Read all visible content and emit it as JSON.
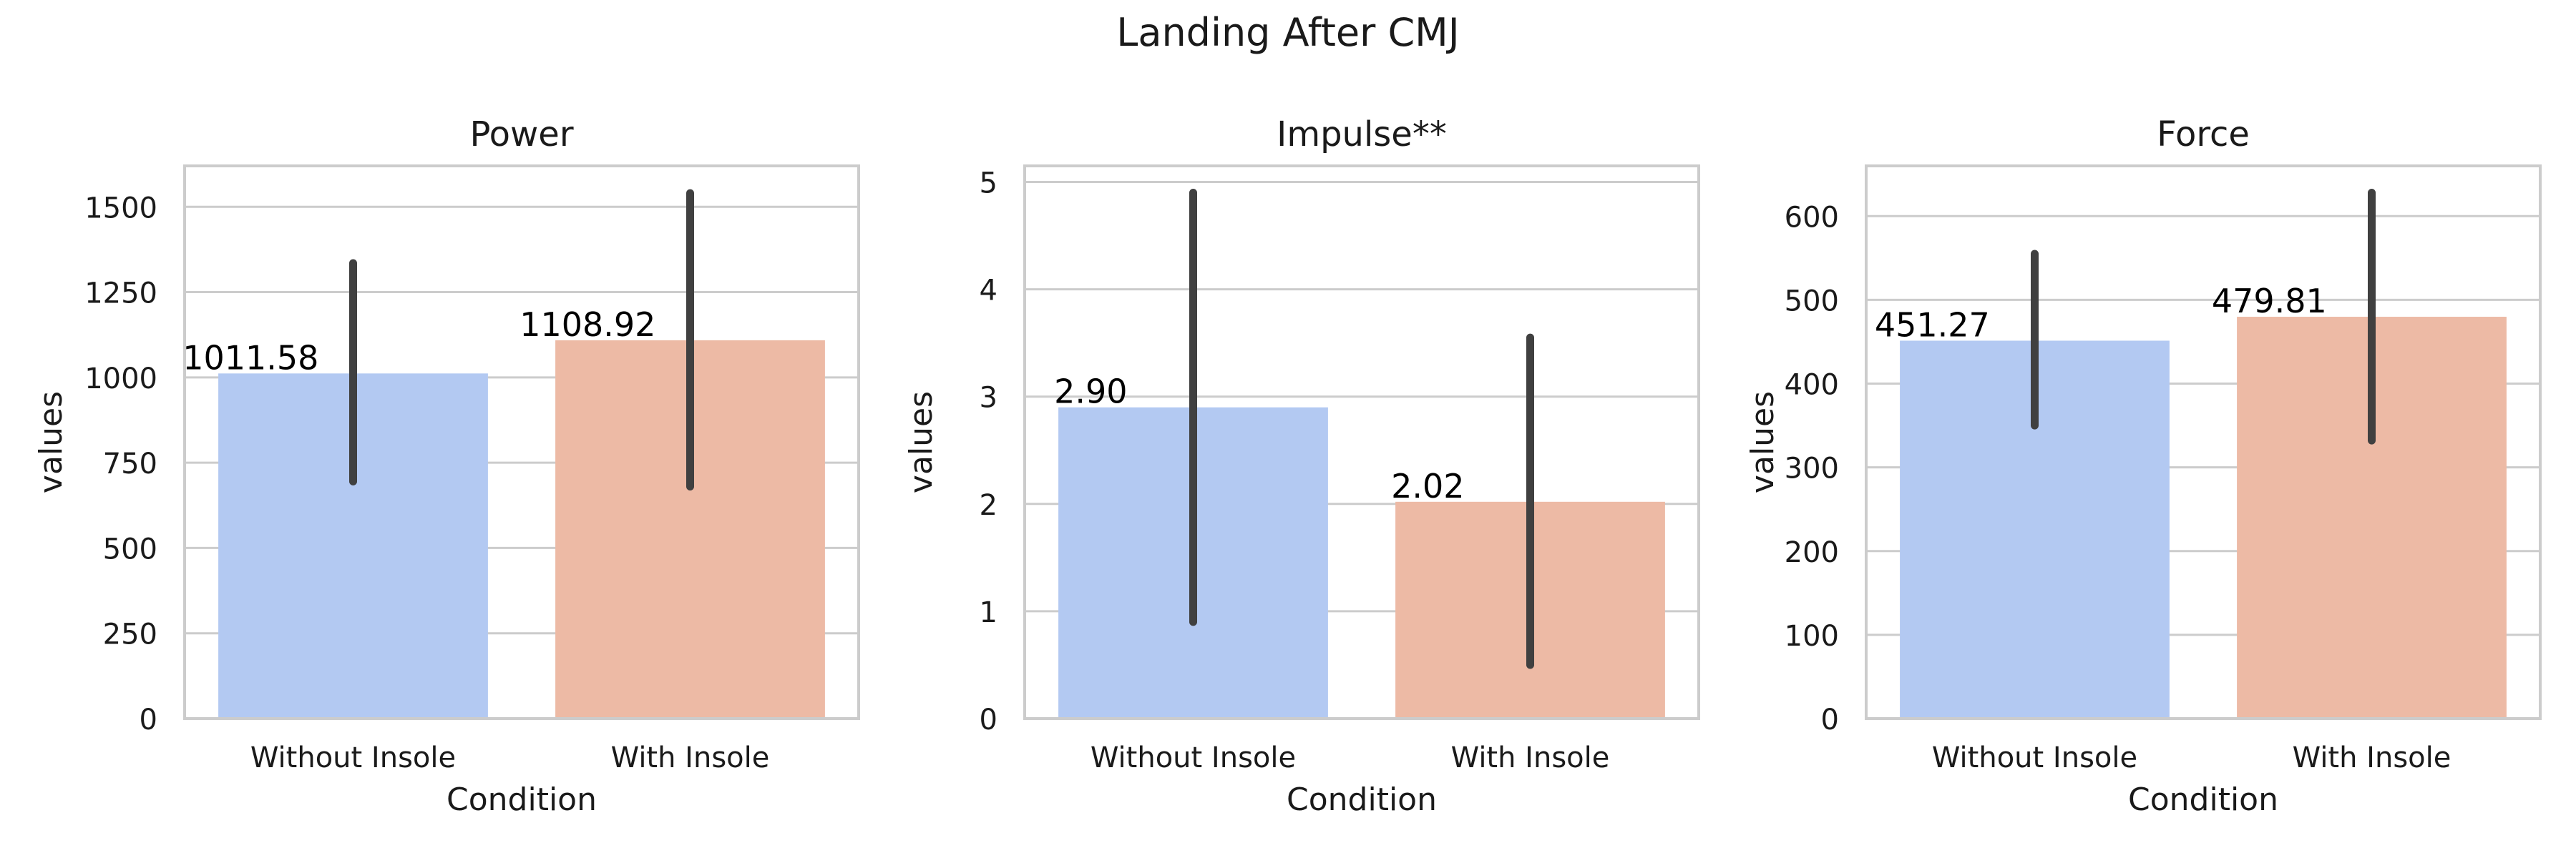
{
  "figure_title": "Landing After CMJ",
  "colors": {
    "without_insole": "#b3c9f2",
    "with_insole": "#edbaa5",
    "error_bar": "#404040",
    "grid": "#cccccc",
    "axis": "#cccccc",
    "text": "#1a1a1a"
  },
  "chart_data": [
    {
      "type": "bar",
      "title": "Power",
      "xlabel": "Condition",
      "ylabel": "values",
      "categories": [
        "Without Insole",
        "With Insole"
      ],
      "values": [
        1011.58,
        1108.92
      ],
      "value_labels": [
        "1011.58",
        "1108.92"
      ],
      "error_low": [
        695,
        680
      ],
      "error_high": [
        1335,
        1540
      ],
      "ylim": [
        0,
        1620
      ],
      "yticks": [
        0,
        250,
        500,
        750,
        1000,
        1250,
        1500
      ],
      "ytick_labels": [
        "0",
        "250",
        "500",
        "750",
        "1000",
        "1250",
        "1500"
      ],
      "grid": true
    },
    {
      "type": "bar",
      "title": "Impulse**",
      "xlabel": "Condition",
      "ylabel": "values",
      "categories": [
        "Without Insole",
        "With Insole"
      ],
      "values": [
        2.9,
        2.02
      ],
      "value_labels": [
        "2.90",
        "2.02"
      ],
      "error_low": [
        0.9,
        0.5
      ],
      "error_high": [
        4.9,
        3.55
      ],
      "ylim": [
        0,
        5.15
      ],
      "yticks": [
        0,
        1,
        2,
        3,
        4,
        5
      ],
      "ytick_labels": [
        "0",
        "1",
        "2",
        "3",
        "4",
        "5"
      ],
      "grid": true
    },
    {
      "type": "bar",
      "title": "Force",
      "xlabel": "Condition",
      "ylabel": "values",
      "categories": [
        "Without Insole",
        "With Insole"
      ],
      "values": [
        451.27,
        479.81
      ],
      "value_labels": [
        "451.27",
        "479.81"
      ],
      "error_low": [
        350,
        332
      ],
      "error_high": [
        555,
        628
      ],
      "ylim": [
        0,
        660
      ],
      "yticks": [
        0,
        100,
        200,
        300,
        400,
        500,
        600
      ],
      "ytick_labels": [
        "0",
        "100",
        "200",
        "300",
        "400",
        "500",
        "600"
      ],
      "grid": true
    }
  ]
}
